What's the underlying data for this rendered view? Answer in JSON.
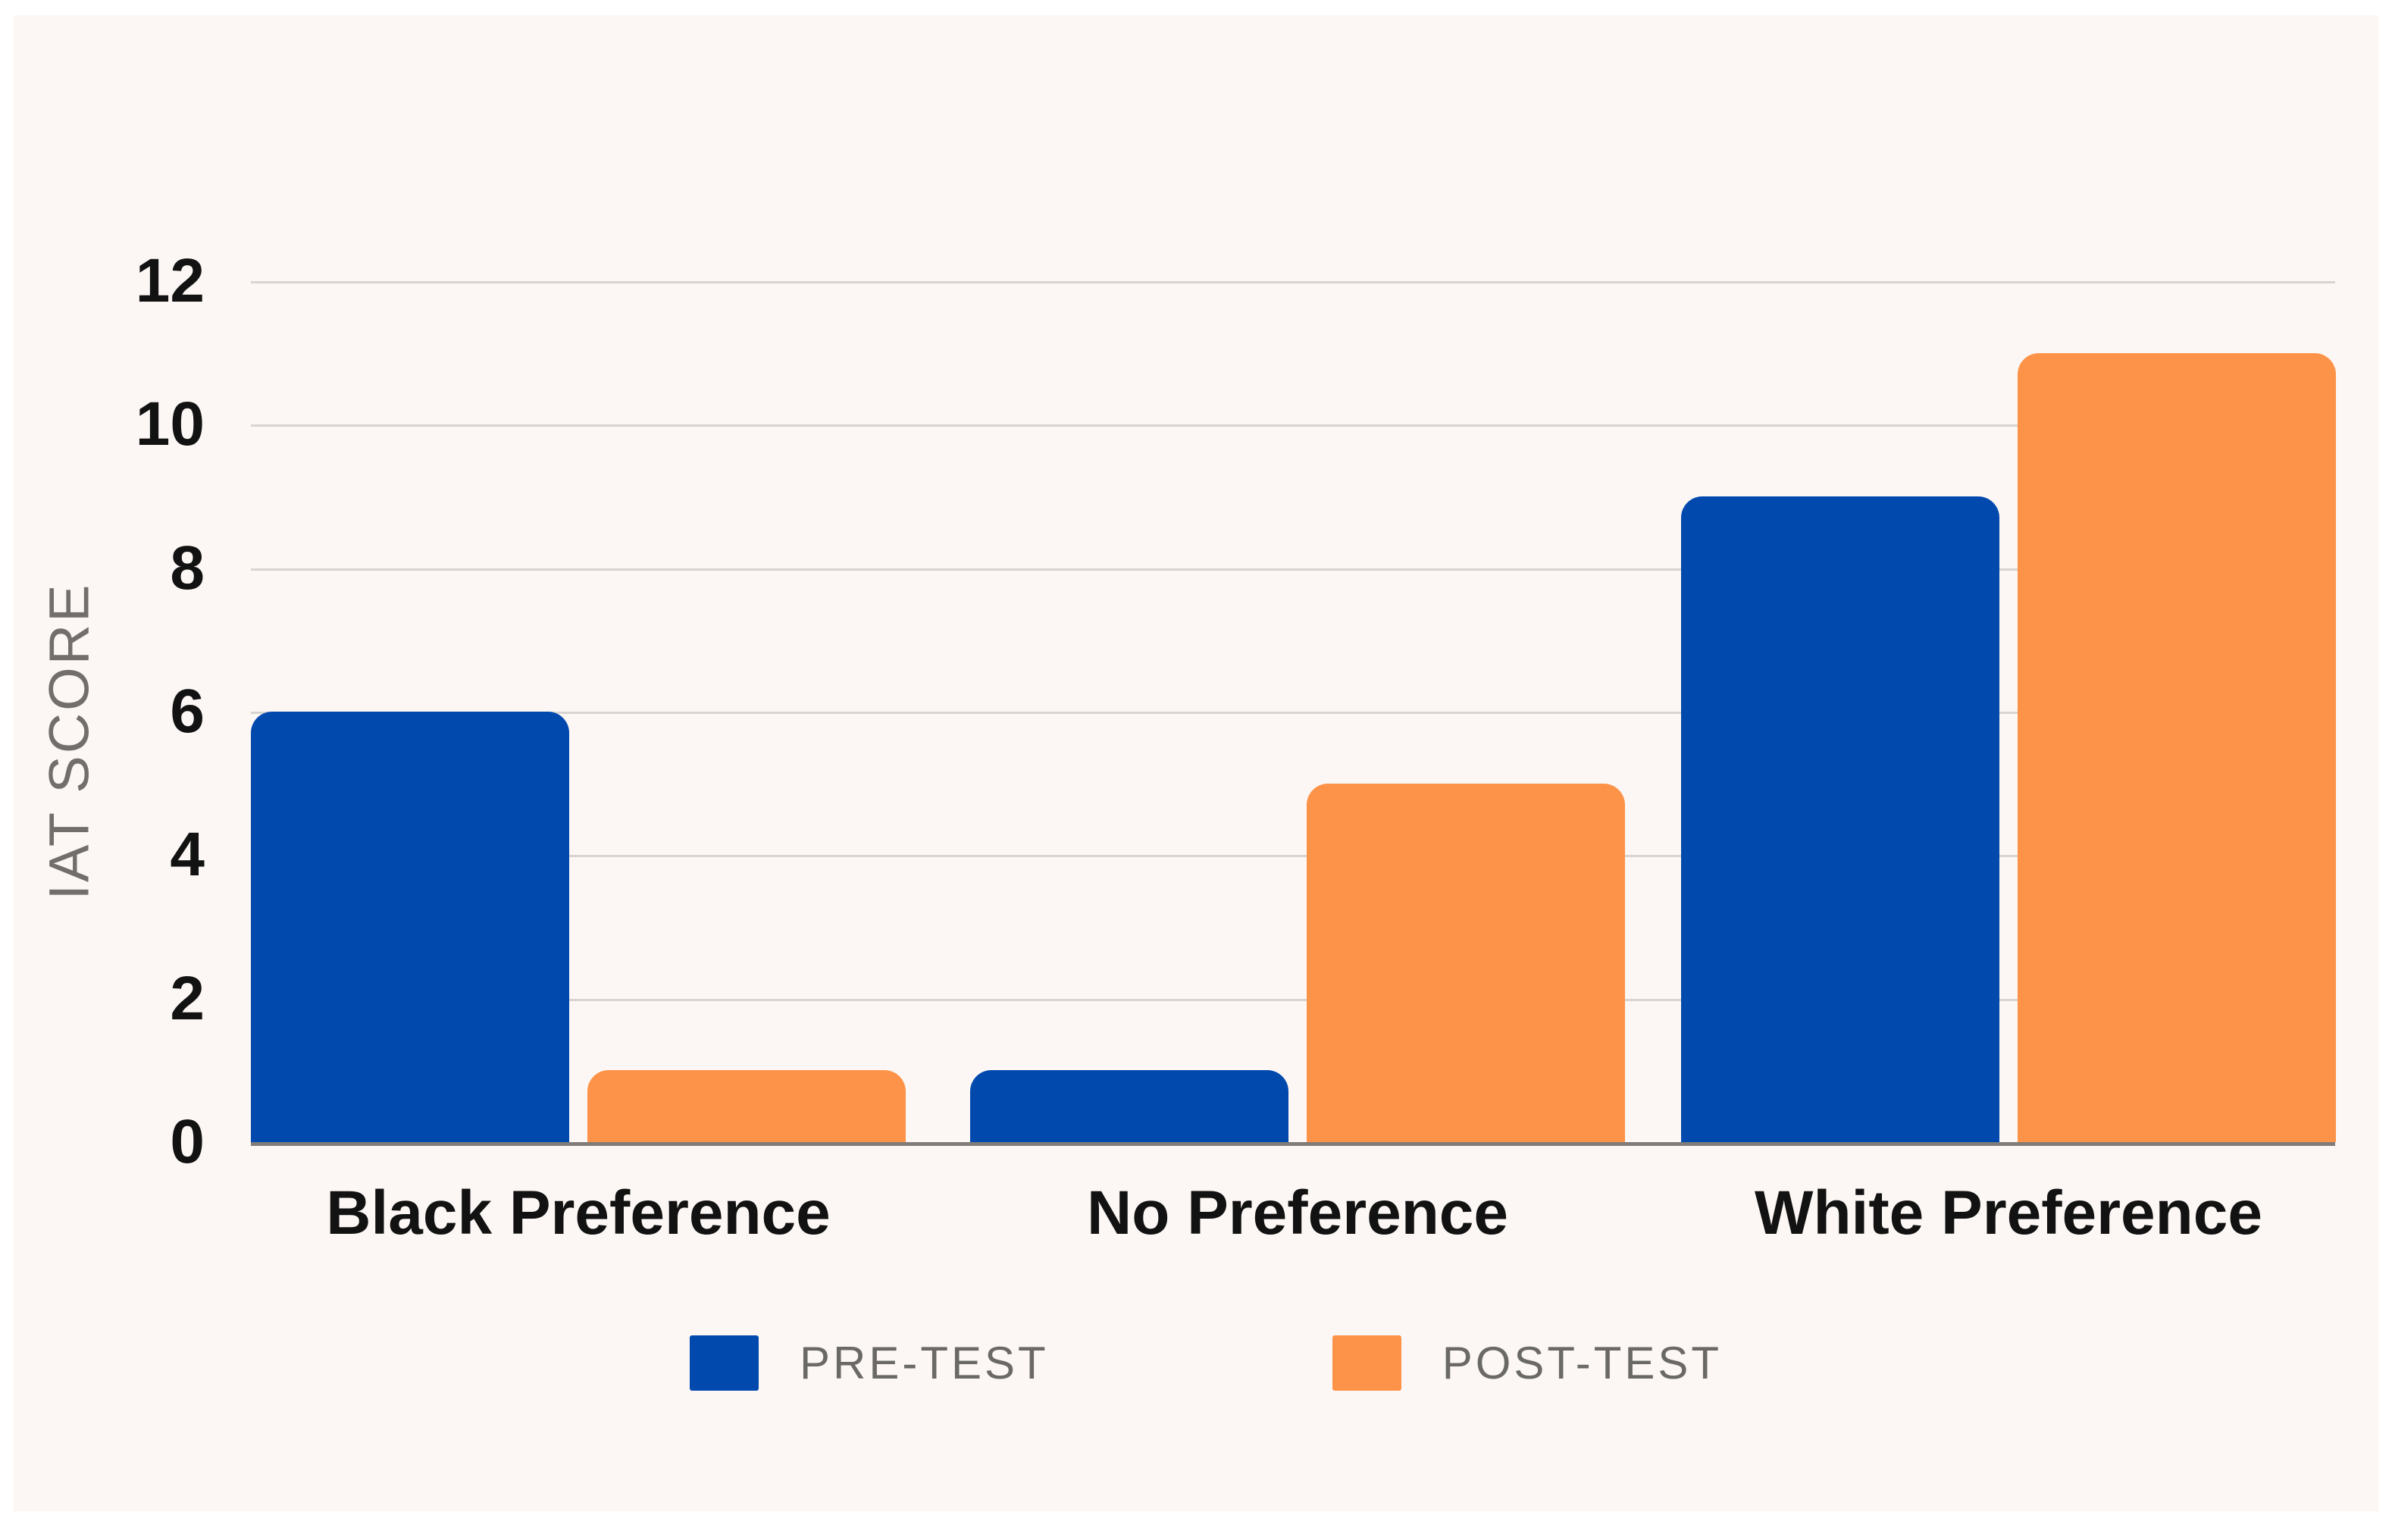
{
  "chart_data": {
    "type": "bar",
    "categories": [
      "Black Preference",
      "No Preference",
      "White Preference"
    ],
    "series": [
      {
        "name": "PRE-TEST",
        "color": "#0249ae",
        "values": [
          6,
          1,
          9
        ]
      },
      {
        "name": "POST-TEST",
        "color": "#fd9348",
        "values": [
          1,
          5,
          11
        ]
      }
    ],
    "ylabel": "IAT SCORE",
    "ylim": [
      0,
      12
    ],
    "yticks": [
      0,
      2,
      4,
      6,
      8,
      10,
      12
    ],
    "grid": true,
    "legend_position": "bottom"
  },
  "colors": {
    "background": "#fcf7f4",
    "page": "#ffffff",
    "gridline": "#d8d4d1",
    "axis_line": "#7f7c79",
    "tick_text": "#121212",
    "category_text": "#121212",
    "legend_text": "#6b6966",
    "axis_title_text": "#716e6b",
    "pre_test": "#0249ae",
    "post_test": "#fd9348"
  }
}
